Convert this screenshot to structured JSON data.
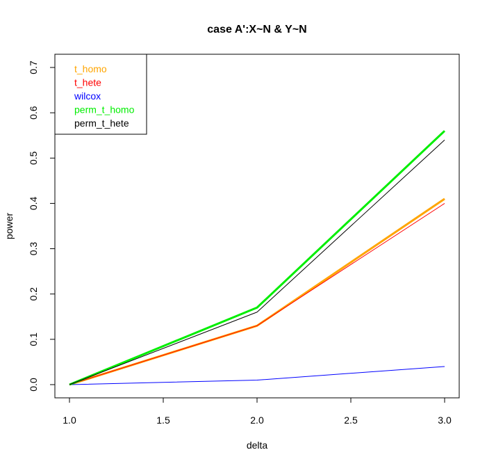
{
  "chart_data": {
    "type": "line",
    "title": "case A':X~N & Y~N",
    "xlabel": "delta",
    "ylabel": "power",
    "x": [
      1.0,
      2.0,
      3.0
    ],
    "xlim": [
      1.0,
      3.0
    ],
    "ylim": [
      0.0,
      0.7
    ],
    "x_ticks": [
      "1.0",
      "1.5",
      "2.0",
      "2.5",
      "3.0"
    ],
    "y_ticks": [
      "0.0",
      "0.1",
      "0.2",
      "0.3",
      "0.4",
      "0.5",
      "0.6",
      "0.7"
    ],
    "grid": false,
    "legend_position": "top-left",
    "series": [
      {
        "name": "t_homo",
        "color": "#FFA500",
        "width": 3,
        "values": [
          0.0,
          0.13,
          0.41
        ]
      },
      {
        "name": "t_hete",
        "color": "#FF0000",
        "width": 1,
        "values": [
          0.0,
          0.13,
          0.4
        ]
      },
      {
        "name": "wilcox",
        "color": "#0000FF",
        "width": 1,
        "values": [
          0.0,
          0.01,
          0.04
        ]
      },
      {
        "name": "perm_t_homo",
        "color": "#00EE00",
        "width": 3,
        "values": [
          0.0,
          0.17,
          0.56
        ]
      },
      {
        "name": "perm_t_hete",
        "color": "#000000",
        "width": 1,
        "values": [
          0.0,
          0.16,
          0.54
        ]
      }
    ]
  }
}
